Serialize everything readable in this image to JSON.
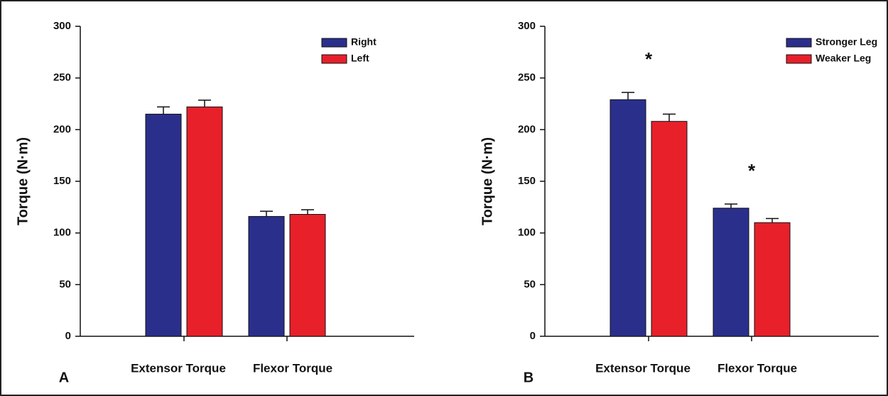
{
  "chart_data": [
    {
      "type": "bar",
      "panel_label": "A",
      "y_label": "Torque (N·m)",
      "categories": [
        "Extensor Torque",
        "Flexor Torque"
      ],
      "series": [
        {
          "name": "Right",
          "color": "#2b2f8c",
          "values": [
            215,
            116
          ],
          "errors": [
            7,
            5
          ]
        },
        {
          "name": "Left",
          "color": "#e8202a",
          "values": [
            222,
            118
          ],
          "errors": [
            6.5,
            4.5
          ]
        }
      ],
      "ylim": [
        0,
        300
      ],
      "yticks": [
        0,
        50,
        100,
        150,
        200,
        250,
        300
      ],
      "legend": "top-right"
    },
    {
      "type": "bar",
      "panel_label": "B",
      "y_label": "Torque (N·m)",
      "categories": [
        "Extensor Torque",
        "Flexor Torque"
      ],
      "annotations": [
        "*",
        "*"
      ],
      "series": [
        {
          "name": "Stronger Leg",
          "color": "#2b2f8c",
          "values": [
            229,
            124
          ],
          "errors": [
            7,
            4
          ]
        },
        {
          "name": "Weaker Leg",
          "color": "#e8202a",
          "values": [
            208,
            110
          ],
          "errors": [
            7,
            4
          ]
        }
      ],
      "ylim": [
        0,
        300
      ],
      "yticks": [
        0,
        50,
        100,
        150,
        200,
        250,
        300
      ],
      "legend": "top-right"
    }
  ]
}
